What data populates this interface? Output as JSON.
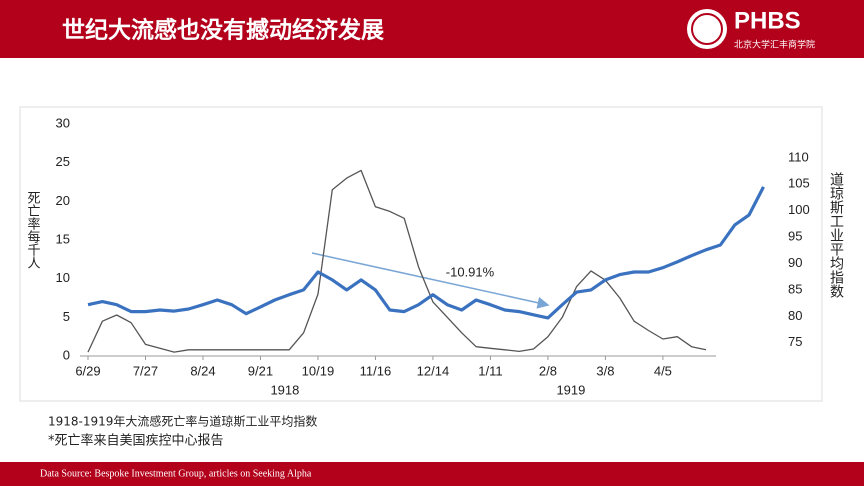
{
  "header": {
    "title": "世纪大流感也没有撼动经济发展",
    "logo": "PHBS",
    "logo_subtitle": "北京大学汇丰商学院"
  },
  "chart_data": {
    "type": "line",
    "y_label": "死亡率每千人",
    "y2_label": "道琼斯工业平均指数",
    "annotation": "-10.91%",
    "year_labels": [
      {
        "value": 13.7,
        "label": "1918"
      },
      {
        "value": 33.6,
        "label": "1919"
      }
    ],
    "x": [
      0,
      1,
      2,
      3,
      4,
      5,
      6,
      7,
      8,
      9,
      10,
      11,
      12,
      13,
      14,
      15,
      16,
      17,
      18,
      19,
      20,
      21,
      22,
      23,
      24,
      25,
      26,
      27,
      28,
      29,
      30,
      31,
      32,
      33,
      34,
      35,
      36,
      37,
      38,
      39,
      40,
      41,
      42,
      43,
      44,
      45,
      46,
      47
    ],
    "xlim": [
      -1.6,
      47.8
    ],
    "xticks": [
      {
        "value": 0,
        "label": "6/29"
      },
      {
        "value": 4,
        "label": "7/27"
      },
      {
        "value": 8,
        "label": "8/24"
      },
      {
        "value": 12,
        "label": "9/21"
      },
      {
        "value": 16,
        "label": "10/19"
      },
      {
        "value": 20,
        "label": "11/16"
      },
      {
        "value": 24,
        "label": "12/14"
      },
      {
        "value": 28,
        "label": "1/11"
      },
      {
        "value": 32,
        "label": "2/8"
      },
      {
        "value": 36,
        "label": "3/8"
      },
      {
        "value": 40,
        "label": "4/5"
      }
    ],
    "ylim": [
      0,
      30
    ],
    "yticks": [
      0,
      5,
      10,
      15,
      20,
      25,
      30
    ],
    "y2lim": [
      72.5,
      116.4
    ],
    "y2ticks": [
      75,
      80,
      85,
      90,
      95,
      100,
      105,
      110
    ],
    "grid": false,
    "series": [
      {
        "name": "死亡率",
        "color": "#555555",
        "values": [
          0.5,
          4.5,
          5.3,
          4.3,
          1.5,
          1.0,
          0.5,
          0.8,
          0.8,
          0.8,
          0.8,
          0.8,
          0.8,
          0.8,
          0.8,
          3,
          8,
          21.5,
          23,
          24,
          19.3,
          18.7,
          17.8,
          11.5,
          7,
          5,
          3,
          1.2,
          1.0,
          0.8,
          0.6,
          0.9,
          2.5,
          5,
          9,
          11,
          9.8,
          7.5,
          4.5,
          3.3,
          2.2,
          2.5,
          1.2,
          0.8,
          null,
          null,
          null,
          null
        ]
      },
      {
        "name": "道琼斯工业平均指数",
        "color": "#3a72c0",
        "axis": "y2",
        "values": [
          82.2,
          82.8,
          82.2,
          80.9,
          80.9,
          81.2,
          81,
          81.4,
          82.2,
          83.1,
          82.2,
          80.5,
          81.8,
          83.1,
          84.1,
          85,
          88.4,
          86.9,
          85,
          86.9,
          85,
          81.2,
          80.9,
          82.2,
          84.1,
          82.2,
          81.2,
          83.1,
          82.2,
          81.2,
          80.9,
          80.3,
          79.7,
          82.2,
          84.6,
          85,
          86.9,
          87.9,
          88.4,
          88.4,
          89.2,
          90.3,
          91.5,
          92.6,
          93.5,
          97.3,
          99.2,
          104.5
        ]
      }
    ]
  },
  "caption": [
    "1918-1919年大流感死亡率与道琼斯工业平均指数",
    "*死亡率来自美国疾控中心报告"
  ],
  "footer": "Data Source: Bespoke Investment Group, articles on Seeking Alpha"
}
